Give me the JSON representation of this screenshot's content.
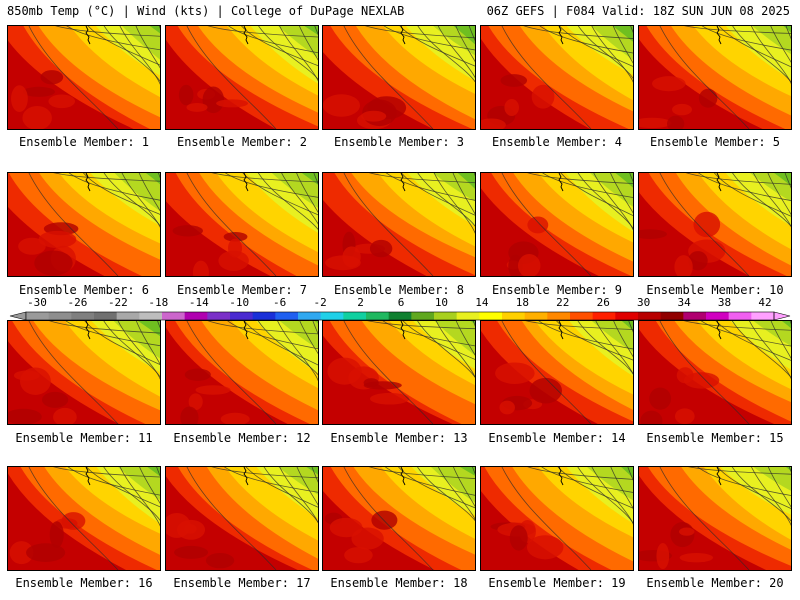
{
  "header": {
    "left": "850mb Temp (°C) | Wind (kts) | College of DuPage NEXLAB",
    "right": "06Z GEFS | F084 Valid: 18Z SUN JUN 08 2025"
  },
  "panels": [
    {
      "caption": "Ensemble Member: 1",
      "heat": 0.62
    },
    {
      "caption": "Ensemble Member: 2",
      "heat": 0.58
    },
    {
      "caption": "Ensemble Member: 3",
      "heat": 0.54
    },
    {
      "caption": "Ensemble Member: 4",
      "heat": 0.57
    },
    {
      "caption": "Ensemble Member: 5",
      "heat": 0.6
    },
    {
      "caption": "Ensemble Member: 6",
      "heat": 0.52
    },
    {
      "caption": "Ensemble Member: 7",
      "heat": 0.5
    },
    {
      "caption": "Ensemble Member: 8",
      "heat": 0.55
    },
    {
      "caption": "Ensemble Member: 9",
      "heat": 0.56
    },
    {
      "caption": "Ensemble Member: 10",
      "heat": 0.58
    },
    {
      "caption": "Ensemble Member: 11",
      "heat": 0.52
    },
    {
      "caption": "Ensemble Member: 12",
      "heat": 0.63
    },
    {
      "caption": "Ensemble Member: 13",
      "heat": 0.62
    },
    {
      "caption": "Ensemble Member: 14",
      "heat": 0.6
    },
    {
      "caption": "Ensemble Member: 15",
      "heat": 0.64
    },
    {
      "caption": "Ensemble Member: 16",
      "heat": 0.6
    },
    {
      "caption": "Ensemble Member: 17",
      "heat": 0.62
    },
    {
      "caption": "Ensemble Member: 18",
      "heat": 0.58
    },
    {
      "caption": "Ensemble Member: 19",
      "heat": 0.54
    },
    {
      "caption": "Ensemble Member: 20",
      "heat": 0.65
    }
  ],
  "colorbar": {
    "ticks": [
      "-30",
      "-26",
      "-22",
      "-18",
      "-14",
      "-10",
      "-6",
      "-2",
      "2",
      "6",
      "10",
      "14",
      "18",
      "22",
      "26",
      "30",
      "34",
      "38",
      "42"
    ],
    "colors": [
      "#9a9a9a",
      "#8e8e8e",
      "#7f7f7f",
      "#707070",
      "#a8a8a8",
      "#bdbdbd",
      "#cc66cc",
      "#b000b0",
      "#7b30c8",
      "#4a2ad0",
      "#1a30d8",
      "#2060f0",
      "#30a8f0",
      "#20d0e8",
      "#10d0a0",
      "#20b860",
      "#108030",
      "#60a820",
      "#a8d020",
      "#e8f020",
      "#ffff00",
      "#ffd000",
      "#ffb000",
      "#ff8800",
      "#ff5000",
      "#ff2000",
      "#e00000",
      "#b80000",
      "#900000",
      "#b00070",
      "#d000c0",
      "#f060f0",
      "#ffa0ff"
    ]
  }
}
